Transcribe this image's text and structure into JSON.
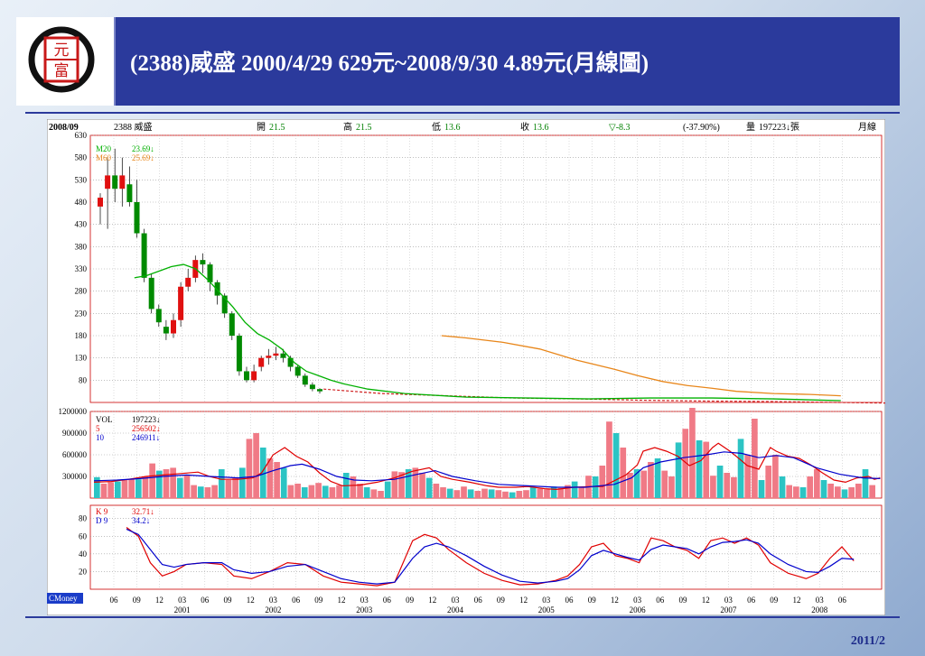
{
  "slide": {
    "title": "(2388)威盛 2000/4/29  629元~2008/9/30 4.89元(月線圖)",
    "footer_date": "2011/2"
  },
  "logo": {
    "text_top": "元",
    "text_bottom": "富"
  },
  "chart_header": {
    "date": "2008/09",
    "stock": "2388 威盛",
    "open_label": "開",
    "open": "21.5",
    "high_label": "高",
    "high": "21.5",
    "low_label": "低",
    "low": "13.6",
    "close_label": "收",
    "close": "13.6",
    "change": "▽-8.3",
    "pct": "(-37.90%)",
    "vol_label": "量",
    "vol": "197223↓張",
    "period": "月線"
  },
  "ma_legend": [
    {
      "label": "M20",
      "value": "23.69↓",
      "color": "#00b000"
    },
    {
      "label": "M60",
      "value": "25.69↓",
      "color": "#e8861a"
    }
  ],
  "vol_legend": [
    {
      "label": "VOL",
      "value": "197223↓",
      "color": "#000000"
    },
    {
      "label": "5",
      "value": "256502↓",
      "color": "#e00000"
    },
    {
      "label": "10",
      "value": "246911↓",
      "color": "#0000cc"
    }
  ],
  "kd_legend": [
    {
      "label": "K 9",
      "value": "32.71↓",
      "color": "#e00000"
    },
    {
      "label": "D 9",
      "value": "34.2↓",
      "color": "#0000cc"
    }
  ],
  "source_badge": "CMoney",
  "chart_data": [
    {
      "type": "candlestick",
      "panel": "price",
      "ylim": [
        30,
        630
      ],
      "yticks": [
        630,
        580,
        530,
        480,
        430,
        380,
        330,
        280,
        230,
        180,
        130,
        80
      ],
      "x_labels": [
        "06",
        "09",
        "12",
        "03",
        "06",
        "09",
        "12",
        "03",
        "06",
        "09",
        "12",
        "03",
        "06",
        "09",
        "12",
        "03",
        "06",
        "09",
        "12",
        "03",
        "06",
        "09",
        "12",
        "03",
        "06",
        "09",
        "12",
        "03",
        "06",
        "09",
        "12",
        "03",
        "06"
      ],
      "year_labels": [
        "2001",
        "2002",
        "2003",
        "2004",
        "2005",
        "2006",
        "2007",
        "2008"
      ],
      "candles": [
        [
          470,
          490,
          430,
          500
        ],
        [
          510,
          540,
          420,
          580
        ],
        [
          540,
          510,
          480,
          600
        ],
        [
          510,
          540,
          470,
          580
        ],
        [
          520,
          480,
          470,
          560
        ],
        [
          480,
          410,
          400,
          530
        ],
        [
          410,
          310,
          300,
          420
        ],
        [
          310,
          240,
          230,
          320
        ],
        [
          240,
          210,
          200,
          250
        ],
        [
          200,
          185,
          170,
          215
        ],
        [
          185,
          215,
          175,
          230
        ],
        [
          215,
          290,
          200,
          300
        ],
        [
          290,
          310,
          280,
          330
        ],
        [
          310,
          350,
          300,
          360
        ],
        [
          350,
          340,
          320,
          365
        ],
        [
          340,
          300,
          280,
          345
        ],
        [
          300,
          270,
          250,
          305
        ],
        [
          270,
          230,
          220,
          275
        ],
        [
          230,
          180,
          170,
          235
        ],
        [
          180,
          100,
          90,
          185
        ],
        [
          100,
          80,
          75,
          110
        ],
        [
          80,
          100,
          75,
          115
        ],
        [
          110,
          130,
          100,
          135
        ],
        [
          130,
          135,
          115,
          150
        ],
        [
          135,
          140,
          125,
          155
        ],
        [
          140,
          130,
          120,
          150
        ],
        [
          130,
          110,
          100,
          135
        ],
        [
          110,
          90,
          85,
          115
        ],
        [
          90,
          70,
          65,
          95
        ],
        [
          70,
          60,
          55,
          75
        ],
        [
          60,
          55,
          50,
          62
        ]
      ],
      "price_line": [
        [
          31,
          60
        ],
        [
          40,
          50
        ],
        [
          50,
          45
        ],
        [
          60,
          40
        ],
        [
          70,
          38
        ],
        [
          80,
          35
        ],
        [
          90,
          33
        ],
        [
          100,
          32
        ],
        [
          110,
          30
        ],
        [
          121,
          28
        ]
      ],
      "m20": [
        [
          6,
          310
        ],
        [
          8,
          315
        ],
        [
          10,
          325
        ],
        [
          12,
          335
        ],
        [
          14,
          340
        ],
        [
          16,
          330
        ],
        [
          18,
          305
        ],
        [
          20,
          275
        ],
        [
          22,
          245
        ],
        [
          24,
          210
        ],
        [
          26,
          185
        ],
        [
          28,
          170
        ],
        [
          30,
          150
        ],
        [
          32,
          120
        ],
        [
          34,
          100
        ],
        [
          36,
          90
        ],
        [
          38,
          80
        ],
        [
          40,
          72
        ],
        [
          44,
          60
        ],
        [
          50,
          50
        ],
        [
          60,
          42
        ],
        [
          70,
          40
        ],
        [
          80,
          38
        ],
        [
          90,
          40
        ],
        [
          100,
          40
        ],
        [
          110,
          38
        ],
        [
          121,
          34
        ]
      ],
      "m60": [
        [
          56,
          180
        ],
        [
          60,
          175
        ],
        [
          66,
          165
        ],
        [
          72,
          150
        ],
        [
          78,
          125
        ],
        [
          84,
          105
        ],
        [
          88,
          90
        ],
        [
          92,
          77
        ],
        [
          96,
          68
        ],
        [
          100,
          62
        ],
        [
          104,
          55
        ],
        [
          110,
          50
        ],
        [
          116,
          48
        ],
        [
          121,
          45
        ]
      ]
    },
    {
      "type": "bar",
      "panel": "volume",
      "ylim": [
        0,
        1200000
      ],
      "yticks": [
        1200000,
        900000,
        600000,
        300000
      ],
      "values": [
        290000,
        200000,
        220000,
        230000,
        250000,
        270000,
        260000,
        300000,
        480000,
        380000,
        400000,
        420000,
        280000,
        320000,
        180000,
        160000,
        150000,
        180000,
        400000,
        250000,
        280000,
        420000,
        820000,
        900000,
        700000,
        550000,
        500000,
        420000,
        180000,
        200000,
        150000,
        180000,
        210000,
        170000,
        150000,
        180000,
        350000,
        300000,
        200000,
        150000,
        120000,
        100000,
        230000,
        370000,
        360000,
        400000,
        420000,
        350000,
        280000,
        200000,
        150000,
        130000,
        110000,
        160000,
        120000,
        100000,
        130000,
        120000,
        110000,
        90000,
        80000,
        100000,
        110000,
        150000,
        130000,
        120000,
        160000,
        140000,
        180000,
        230000,
        150000,
        310000,
        300000,
        450000,
        1060000,
        900000,
        700000,
        350000,
        400000,
        380000,
        500000,
        550000,
        380000,
        300000,
        770000,
        960000,
        1250000,
        800000,
        780000,
        310000,
        450000,
        350000,
        290000,
        820000,
        600000,
        1100000,
        250000,
        450000,
        600000,
        300000,
        180000,
        160000,
        150000,
        300000,
        400000,
        250000,
        200000,
        160000,
        120000,
        150000,
        200000,
        400000,
        180000
      ],
      "ma5": [
        [
          0,
          220000
        ],
        [
          6,
          230000
        ],
        [
          12,
          260000
        ],
        [
          18,
          300000
        ],
        [
          24,
          320000
        ],
        [
          30,
          340000
        ],
        [
          36,
          360000
        ],
        [
          40,
          300000
        ],
        [
          44,
          260000
        ],
        [
          50,
          260000
        ],
        [
          55,
          280000
        ],
        [
          58,
          350000
        ],
        [
          62,
          600000
        ],
        [
          66,
          700000
        ],
        [
          70,
          580000
        ],
        [
          74,
          500000
        ],
        [
          78,
          350000
        ],
        [
          82,
          230000
        ],
        [
          86,
          170000
        ],
        [
          92,
          180000
        ],
        [
          98,
          220000
        ],
        [
          104,
          280000
        ],
        [
          110,
          370000
        ],
        [
          116,
          420000
        ],
        [
          120,
          300000
        ],
        [
          124,
          260000
        ],
        [
          130,
          220000
        ],
        [
          136,
          170000
        ],
        [
          140,
          150000
        ],
        [
          146,
          150000
        ],
        [
          150,
          160000
        ],
        [
          156,
          130000
        ],
        [
          160,
          120000
        ],
        [
          166,
          150000
        ],
        [
          172,
          160000
        ],
        [
          176,
          160000
        ],
        [
          180,
          240000
        ],
        [
          184,
          320000
        ],
        [
          188,
          460000
        ],
        [
          190,
          650000
        ],
        [
          194,
          700000
        ],
        [
          198,
          650000
        ],
        [
          202,
          580000
        ],
        [
          206,
          450000
        ],
        [
          210,
          520000
        ],
        [
          214,
          700000
        ],
        [
          216,
          760000
        ],
        [
          220,
          650000
        ],
        [
          224,
          520000
        ],
        [
          226,
          450000
        ],
        [
          230,
          400000
        ],
        [
          234,
          700000
        ],
        [
          236,
          650000
        ],
        [
          240,
          580000
        ],
        [
          244,
          550000
        ],
        [
          248,
          460000
        ],
        [
          252,
          350000
        ],
        [
          256,
          250000
        ],
        [
          260,
          220000
        ],
        [
          264,
          280000
        ],
        [
          268,
          300000
        ],
        [
          270,
          260000
        ],
        [
          272,
          280000
        ]
      ],
      "ma10": [
        [
          0,
          240000
        ],
        [
          8,
          250000
        ],
        [
          16,
          270000
        ],
        [
          24,
          300000
        ],
        [
          32,
          320000
        ],
        [
          40,
          300000
        ],
        [
          50,
          280000
        ],
        [
          56,
          300000
        ],
        [
          62,
          380000
        ],
        [
          68,
          450000
        ],
        [
          72,
          470000
        ],
        [
          78,
          400000
        ],
        [
          84,
          300000
        ],
        [
          90,
          250000
        ],
        [
          96,
          240000
        ],
        [
          104,
          260000
        ],
        [
          112,
          330000
        ],
        [
          118,
          380000
        ],
        [
          124,
          300000
        ],
        [
          132,
          240000
        ],
        [
          140,
          190000
        ],
        [
          150,
          170000
        ],
        [
          160,
          150000
        ],
        [
          170,
          150000
        ],
        [
          180,
          190000
        ],
        [
          186,
          280000
        ],
        [
          190,
          420000
        ],
        [
          196,
          500000
        ],
        [
          204,
          560000
        ],
        [
          212,
          600000
        ],
        [
          218,
          640000
        ],
        [
          224,
          620000
        ],
        [
          230,
          560000
        ],
        [
          236,
          590000
        ],
        [
          242,
          560000
        ],
        [
          250,
          420000
        ],
        [
          258,
          330000
        ],
        [
          266,
          280000
        ],
        [
          272,
          270000
        ]
      ]
    },
    {
      "type": "line",
      "panel": "kd",
      "ylim": [
        0,
        95
      ],
      "yticks": [
        80,
        60,
        40,
        20
      ],
      "k": [
        [
          0,
          70
        ],
        [
          4,
          60
        ],
        [
          8,
          30
        ],
        [
          12,
          15
        ],
        [
          16,
          20
        ],
        [
          20,
          28
        ],
        [
          26,
          30
        ],
        [
          32,
          28
        ],
        [
          36,
          15
        ],
        [
          42,
          12
        ],
        [
          48,
          20
        ],
        [
          54,
          30
        ],
        [
          60,
          28
        ],
        [
          66,
          15
        ],
        [
          72,
          8
        ],
        [
          78,
          6
        ],
        [
          84,
          4
        ],
        [
          90,
          8
        ],
        [
          96,
          55
        ],
        [
          100,
          62
        ],
        [
          104,
          58
        ],
        [
          108,
          45
        ],
        [
          114,
          30
        ],
        [
          120,
          18
        ],
        [
          126,
          10
        ],
        [
          132,
          5
        ],
        [
          138,
          6
        ],
        [
          144,
          10
        ],
        [
          148,
          15
        ],
        [
          152,
          28
        ],
        [
          156,
          48
        ],
        [
          160,
          52
        ],
        [
          164,
          38
        ],
        [
          168,
          35
        ],
        [
          172,
          30
        ],
        [
          176,
          58
        ],
        [
          180,
          55
        ],
        [
          184,
          48
        ],
        [
          188,
          44
        ],
        [
          192,
          35
        ],
        [
          196,
          55
        ],
        [
          200,
          58
        ],
        [
          204,
          52
        ],
        [
          208,
          58
        ],
        [
          212,
          50
        ],
        [
          216,
          30
        ],
        [
          222,
          18
        ],
        [
          228,
          12
        ],
        [
          232,
          18
        ],
        [
          236,
          35
        ],
        [
          240,
          48
        ],
        [
          244,
          32
        ]
      ],
      "d": [
        [
          0,
          68
        ],
        [
          4,
          62
        ],
        [
          8,
          45
        ],
        [
          12,
          28
        ],
        [
          16,
          25
        ],
        [
          20,
          28
        ],
        [
          26,
          30
        ],
        [
          32,
          30
        ],
        [
          36,
          22
        ],
        [
          42,
          18
        ],
        [
          48,
          20
        ],
        [
          54,
          26
        ],
        [
          60,
          28
        ],
        [
          66,
          20
        ],
        [
          72,
          12
        ],
        [
          78,
          8
        ],
        [
          84,
          6
        ],
        [
          90,
          8
        ],
        [
          96,
          35
        ],
        [
          100,
          48
        ],
        [
          104,
          52
        ],
        [
          108,
          48
        ],
        [
          114,
          38
        ],
        [
          120,
          26
        ],
        [
          126,
          16
        ],
        [
          132,
          9
        ],
        [
          138,
          7
        ],
        [
          144,
          9
        ],
        [
          148,
          12
        ],
        [
          152,
          22
        ],
        [
          156,
          38
        ],
        [
          160,
          44
        ],
        [
          164,
          40
        ],
        [
          168,
          36
        ],
        [
          172,
          33
        ],
        [
          176,
          45
        ],
        [
          180,
          50
        ],
        [
          184,
          48
        ],
        [
          188,
          46
        ],
        [
          192,
          40
        ],
        [
          196,
          48
        ],
        [
          200,
          53
        ],
        [
          204,
          54
        ],
        [
          208,
          56
        ],
        [
          212,
          52
        ],
        [
          216,
          40
        ],
        [
          222,
          28
        ],
        [
          228,
          20
        ],
        [
          232,
          19
        ],
        [
          236,
          26
        ],
        [
          240,
          35
        ],
        [
          244,
          34
        ]
      ]
    }
  ]
}
